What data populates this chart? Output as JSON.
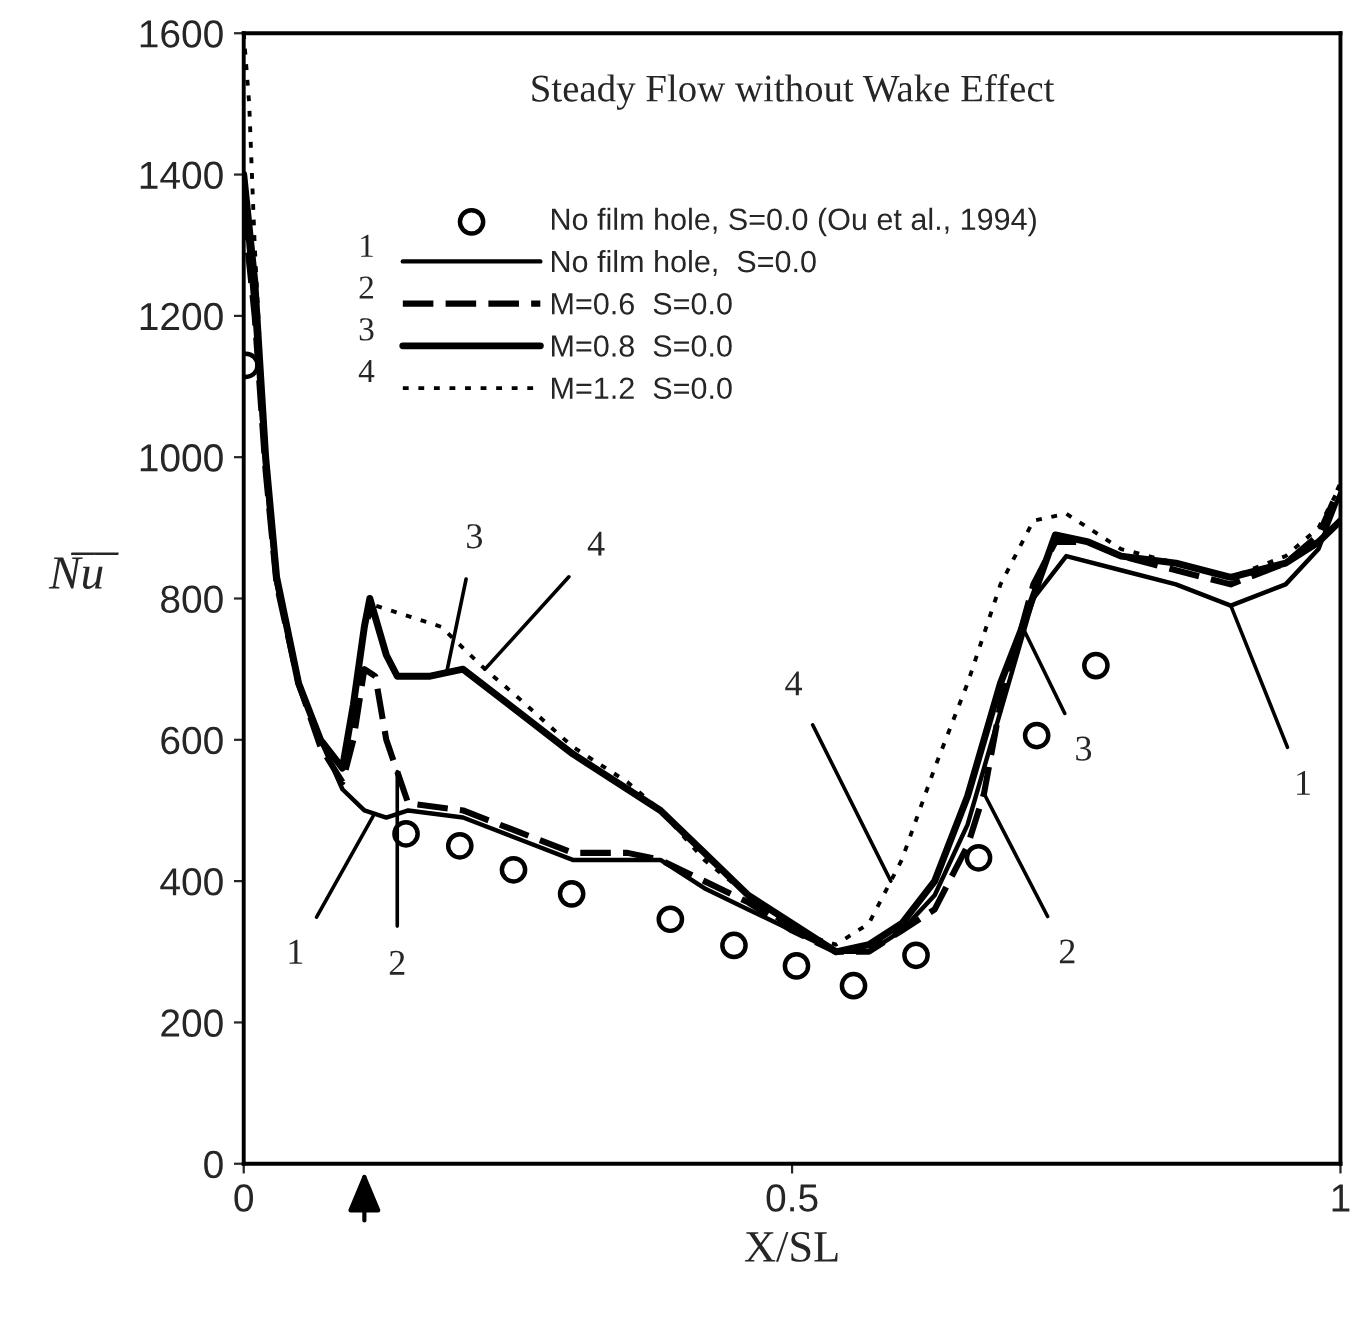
{
  "chart_data": {
    "type": "line",
    "title": "Steady Flow without Wake Effect",
    "xlabel": "X/SL",
    "ylabel": "N̅u̅",
    "xlim": [
      0,
      1
    ],
    "ylim": [
      0,
      1600
    ],
    "xticks": [
      0,
      0.5,
      1
    ],
    "yticks": [
      0,
      200,
      400,
      600,
      800,
      1000,
      1200,
      1400,
      1600
    ],
    "grid": false,
    "legend": "top",
    "series": [
      {
        "name": "No film hole, S=0.0 (Ou et al., 1994)",
        "type": "scatter",
        "marker": "circle",
        "color": "#000000",
        "x": [
          0.002,
          0.148,
          0.197,
          0.246,
          0.299,
          0.389,
          0.447,
          0.504,
          0.556,
          0.613,
          0.67,
          0.723,
          0.777
        ],
        "values": [
          1130,
          467,
          450,
          416,
          382,
          346,
          309,
          280,
          252,
          295,
          433,
          606,
          705
        ]
      },
      {
        "name": "No film hole,  S=0.0",
        "line_style": "solid",
        "color": "#000000",
        "x": [
          0,
          0.01,
          0.02,
          0.03,
          0.05,
          0.07,
          0.09,
          0.11,
          0.13,
          0.15,
          0.2,
          0.25,
          0.3,
          0.35,
          0.38,
          0.42,
          0.46,
          0.5,
          0.54,
          0.57,
          0.6,
          0.63,
          0.66,
          0.69,
          0.72,
          0.75,
          0.8,
          0.85,
          0.9,
          0.95,
          0.98,
          1.0
        ],
        "values": [
          1380,
          1200,
          980,
          820,
          680,
          600,
          530,
          500,
          490,
          500,
          490,
          460,
          430,
          430,
          430,
          390,
          360,
          330,
          300,
          300,
          330,
          380,
          480,
          640,
          800,
          860,
          840,
          820,
          790,
          820,
          870,
          950
        ]
      },
      {
        "name": "M=0.6  S=0.0",
        "line_style": "dashed",
        "color": "#000000",
        "x": [
          0,
          0.01,
          0.02,
          0.03,
          0.05,
          0.07,
          0.09,
          0.1,
          0.11,
          0.12,
          0.13,
          0.15,
          0.2,
          0.25,
          0.3,
          0.35,
          0.38,
          0.42,
          0.46,
          0.5,
          0.54,
          0.57,
          0.6,
          0.63,
          0.66,
          0.675,
          0.69,
          0.72,
          0.74,
          0.77,
          0.8,
          0.85,
          0.9,
          0.95,
          0.98,
          1.0
        ],
        "values": [
          1350,
          1200,
          980,
          820,
          680,
          590,
          540,
          600,
          700,
          690,
          600,
          510,
          500,
          470,
          440,
          440,
          430,
          400,
          370,
          330,
          300,
          300,
          330,
          360,
          450,
          524,
          650,
          820,
          880,
          880,
          860,
          840,
          820,
          850,
          890,
          960
        ]
      },
      {
        "name": "M=0.8  S=0.0",
        "line_style": "solid",
        "color": "#000000",
        "x": [
          0,
          0.01,
          0.02,
          0.03,
          0.05,
          0.07,
          0.09,
          0.1,
          0.11,
          0.115,
          0.13,
          0.14,
          0.17,
          0.2,
          0.25,
          0.3,
          0.35,
          0.38,
          0.42,
          0.46,
          0.5,
          0.54,
          0.57,
          0.6,
          0.63,
          0.66,
          0.69,
          0.71,
          0.74,
          0.77,
          0.8,
          0.85,
          0.9,
          0.95,
          0.98,
          1.0
        ],
        "values": [
          1400,
          1250,
          1000,
          830,
          680,
          600,
          560,
          650,
          760,
          800,
          720,
          690,
          690,
          700,
          640,
          580,
          530,
          500,
          440,
          380,
          340,
          300,
          310,
          340,
          400,
          520,
          680,
          760,
          890,
          880,
          860,
          850,
          830,
          850,
          880,
          910
        ]
      },
      {
        "name": "M=1.2  S=0.0",
        "line_style": "dotted",
        "color": "#000000",
        "x": [
          0,
          0.005,
          0.01,
          0.02,
          0.03,
          0.05,
          0.07,
          0.09,
          0.1,
          0.11,
          0.12,
          0.14,
          0.18,
          0.22,
          0.25,
          0.3,
          0.35,
          0.38,
          0.42,
          0.46,
          0.5,
          0.54,
          0.57,
          0.6,
          0.63,
          0.66,
          0.69,
          0.72,
          0.75,
          0.8,
          0.85,
          0.9,
          0.95,
          0.98,
          1.0
        ],
        "values": [
          1600,
          1500,
          1300,
          1000,
          820,
          680,
          600,
          560,
          650,
          760,
          790,
          780,
          760,
          700,
          660,
          590,
          540,
          500,
          430,
          380,
          330,
          310,
          340,
          430,
          560,
          680,
          820,
          910,
          920,
          870,
          850,
          830,
          860,
          900,
          960
        ]
      }
    ],
    "annotations": [
      {
        "text": "1",
        "x": 0.118,
        "y": 492
      },
      {
        "text": "2",
        "x": 0.14,
        "y": 555
      },
      {
        "text": "3",
        "x": 0.185,
        "y": 695
      },
      {
        "text": "4",
        "x": 0.22,
        "y": 700
      },
      {
        "text": "4",
        "x": 0.59,
        "y": 400
      },
      {
        "text": "2",
        "x": 0.675,
        "y": 524
      },
      {
        "text": "3",
        "x": 0.71,
        "y": 760
      },
      {
        "text": "1",
        "x": 0.9,
        "y": 790
      },
      "1",
      "2",
      "3",
      "4"
    ]
  }
}
